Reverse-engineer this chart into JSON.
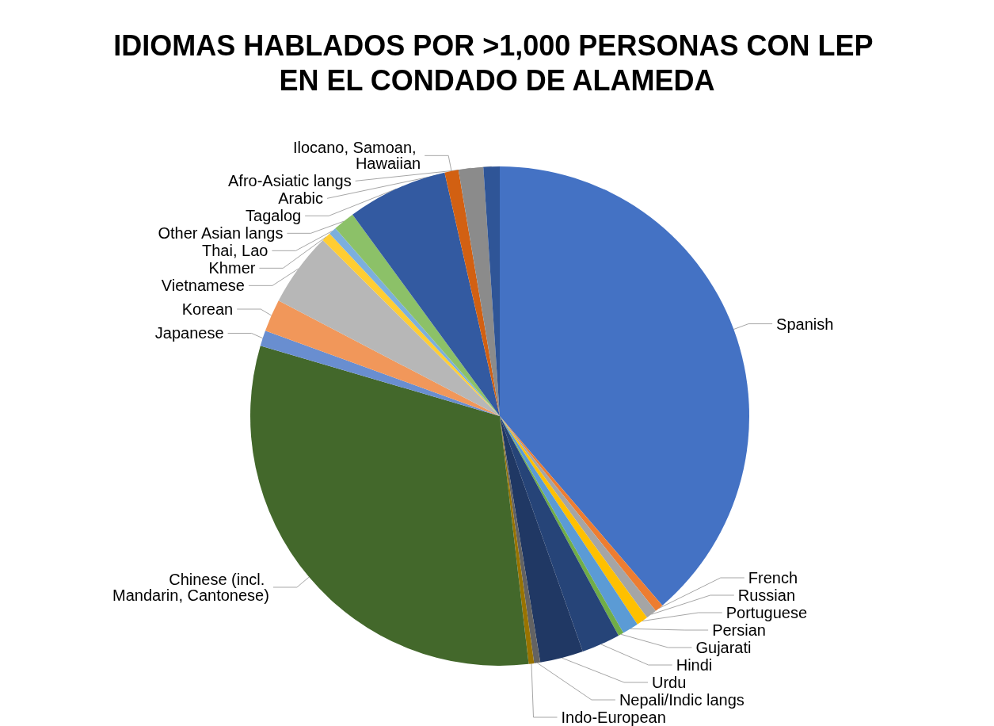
{
  "chart_data": {
    "type": "pie",
    "title": "IDIOMAS HABLADOS POR >1,000 PERSONAS CON LEP EN EL CONDADO DE ALAMEDA",
    "categories": [
      "Spanish",
      "French",
      "Russian",
      "Portuguese",
      "Persian",
      "Gujarati",
      "Hindi",
      "Urdu",
      "Nepali/Indic langs",
      "Indo-European",
      "Chinese (incl. Mandarin, Cantonese)",
      "Japanese",
      "Korean",
      "Vietnamese",
      "Khmer",
      "Thai, Lao",
      "Other Asian langs",
      "Tagalog",
      "Ilocano, Samoan, Hawaiian",
      "Arabic",
      "Afro-Asiatic langs"
    ],
    "values": [
      38.7,
      0.55,
      0.7,
      0.75,
      1.05,
      0.35,
      2.5,
      2.8,
      0.4,
      0.35,
      31.4,
      1.0,
      2.1,
      4.8,
      0.6,
      0.5,
      1.4,
      6.5,
      0.9,
      1.6,
      1.05
    ],
    "colors": [
      "#4472c4",
      "#ed7d31",
      "#a5a5a5",
      "#ffc000",
      "#5b9bd5",
      "#70ad47",
      "#264478",
      "#203864",
      "#636363",
      "#997300",
      "#43682b",
      "#698ed0",
      "#f1975a",
      "#b7b7b7",
      "#ffcd33",
      "#7cafdd",
      "#8cc168",
      "#335aa1",
      "#d26012",
      "#8b8b8b",
      "#2f5597"
    ],
    "legend": false
  }
}
